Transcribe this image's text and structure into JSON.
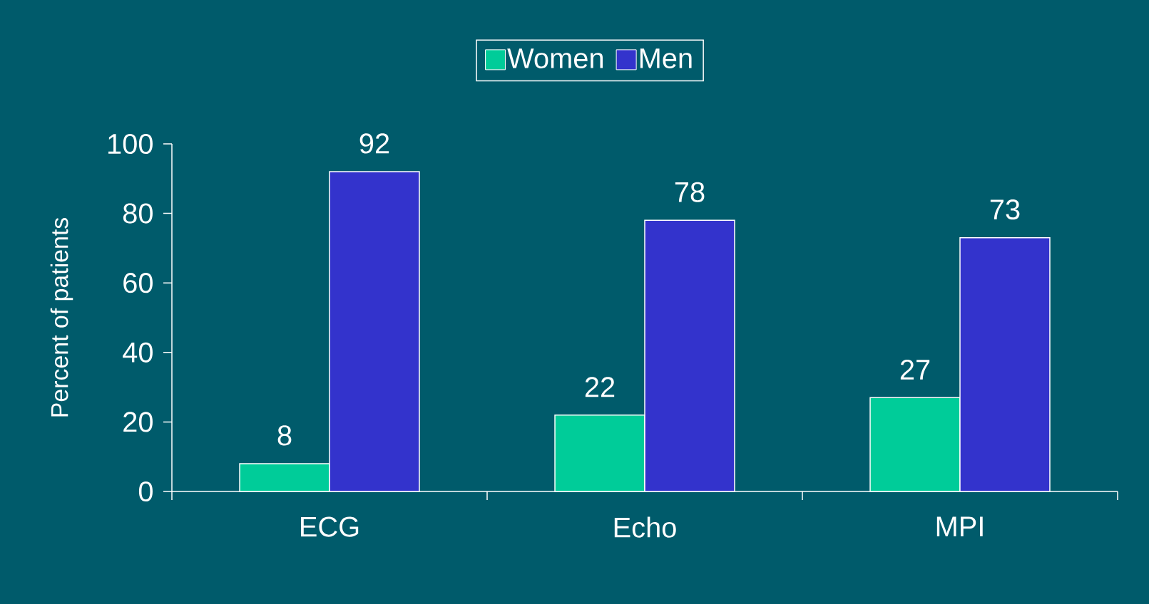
{
  "chart_data": {
    "type": "bar",
    "ylabel": "Percent of patients",
    "categories": [
      "ECG",
      "Echo",
      "MPI"
    ],
    "series": [
      {
        "name": "Women",
        "color": "#00cc99",
        "values": [
          8,
          22,
          27
        ]
      },
      {
        "name": "Men",
        "color": "#3333cc",
        "values": [
          92,
          78,
          73
        ]
      }
    ],
    "ylim": [
      0,
      100
    ],
    "yticks": [
      0,
      20,
      40,
      60,
      80,
      100
    ],
    "data_labels": true,
    "legend": "top",
    "grid": false
  }
}
